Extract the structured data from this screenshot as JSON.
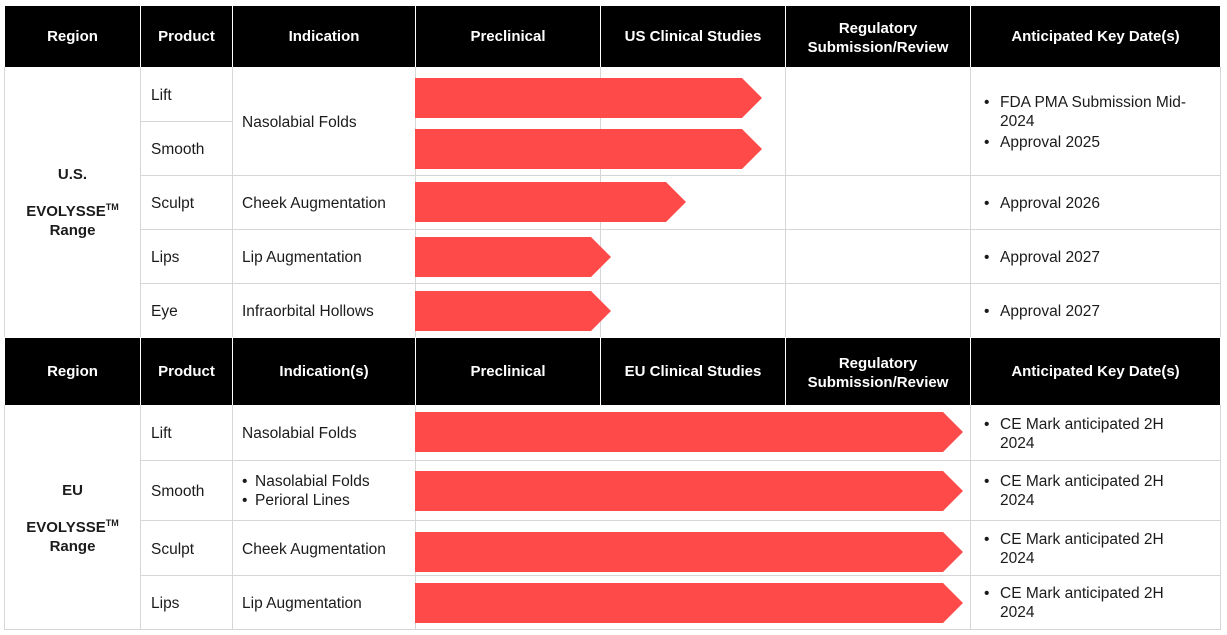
{
  "colors": {
    "header_bg": "#000000",
    "header_text": "#ffffff",
    "arrow": "#ff4a4a",
    "grid": "#d6d6d6"
  },
  "us_header": {
    "region": "Region",
    "product": "Product",
    "indication": "Indication",
    "preclinical": "Preclinical",
    "clinical": "US Clinical Studies",
    "regulatory_1": "Regulatory",
    "regulatory_2": "Submission/Review",
    "dates": "Anticipated Key Date(s)"
  },
  "us_region": {
    "line1": "U.S.",
    "line2": "EVOLYSSE",
    "tm": "TM",
    "line3": "Range"
  },
  "us_rows": [
    {
      "product": "Lift",
      "stage_progress": 0.75
    },
    {
      "product": "Smooth",
      "stage_progress": 0.75
    },
    {
      "product": "Sculpt",
      "indication": "Cheek Augmentation",
      "stage_progress": 0.5
    },
    {
      "product": "Lips",
      "indication": "Lip Augmentation",
      "stage_progress": 0.25
    },
    {
      "product": "Eye",
      "indication": "Infraorbital Hollows",
      "stage_progress": 0.25
    }
  ],
  "us_shared_indication": "Nasolabial Folds",
  "us_dates": {
    "lift_smooth": [
      "FDA PMA Submission Mid-",
      "2024",
      "Approval 2025"
    ],
    "sculpt": "Approval 2026",
    "lips": "Approval 2027",
    "eye": "Approval 2027"
  },
  "eu_header": {
    "region": "Region",
    "product": "Product",
    "indication": "Indication(s)",
    "preclinical": "Preclinical",
    "clinical": "EU Clinical Studies",
    "regulatory_1": "Regulatory",
    "regulatory_2": "Submission/Review",
    "dates": "Anticipated Key Date(s)"
  },
  "eu_region": {
    "line1": "EU",
    "line2": "EVOLYSSE",
    "tm": "TM",
    "line3": "Range"
  },
  "eu_rows": [
    {
      "product": "Lift",
      "indication": "Nasolabial Folds",
      "date_1": "CE Mark anticipated 2H",
      "date_2": "2024",
      "stage_progress": 1.0
    },
    {
      "product": "Smooth",
      "indications": [
        "Nasolabial Folds",
        "Perioral Lines"
      ],
      "date_1": "CE Mark anticipated 2H",
      "date_2": "2024",
      "stage_progress": 1.0
    },
    {
      "product": "Sculpt",
      "indication": "Cheek Augmentation",
      "date_1": "CE Mark anticipated 2H",
      "date_2": "2024",
      "stage_progress": 1.0
    },
    {
      "product": "Lips",
      "indication": "Lip Augmentation",
      "date_1": "CE Mark anticipated 2H",
      "date_2": "2024",
      "stage_progress": 1.0
    }
  ]
}
